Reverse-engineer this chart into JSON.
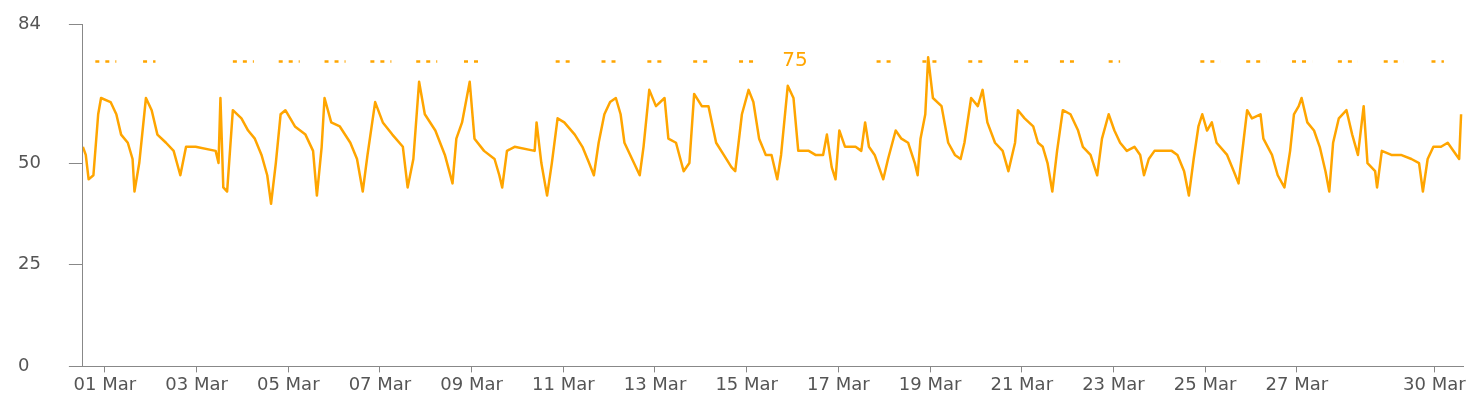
{
  "chart_data": {
    "type": "line",
    "marker": "none",
    "line_style": "solid",
    "grid": false,
    "legend": false,
    "xlim": [
      "--02-28T12:30",
      "--03-30T15:00"
    ],
    "ylim": [
      0,
      84
    ],
    "yticks": [
      0,
      25,
      50,
      84
    ],
    "xticks": [
      {
        "value": "--03-01",
        "label": "01 Mar"
      },
      {
        "value": "--03-03",
        "label": "03 Mar"
      },
      {
        "value": "--03-05",
        "label": "05 Mar"
      },
      {
        "value": "--03-07",
        "label": "07 Mar"
      },
      {
        "value": "--03-09",
        "label": "09 Mar"
      },
      {
        "value": "--03-11",
        "label": "11 Mar"
      },
      {
        "value": "--03-13",
        "label": "13 Mar"
      },
      {
        "value": "--03-15",
        "label": "15 Mar"
      },
      {
        "value": "--03-17",
        "label": "17 Mar"
      },
      {
        "value": "--03-19",
        "label": "19 Mar"
      },
      {
        "value": "--03-21",
        "label": "21 Mar"
      },
      {
        "value": "--03-23",
        "label": "23 Mar"
      },
      {
        "value": "--03-25",
        "label": "25 Mar"
      },
      {
        "value": "--03-27",
        "label": "27 Mar"
      },
      {
        "value": "--03-30",
        "label": "30 Mar"
      }
    ],
    "annotations": [
      "75"
    ],
    "series": [
      {
        "color": "#ffa500",
        "x": [
          "--02-28T12:30",
          "--02-28T14:00",
          "--02-28T15:30",
          "--02-28T18:00",
          "--02-28T20:30",
          "--02-28T22:00",
          "--03-01T03:00",
          "--03-01T06:00",
          "--03-01T08:30",
          "--03-01T12:00",
          "--03-01T14:30",
          "--03-01T15:30",
          "--03-01T18:00",
          "--03-01T21:30",
          "--03-02T00:30",
          "--03-02T03:30",
          "--03-02T08:00",
          "--03-02T12:00",
          "--03-02T15:30",
          "--03-02T18:30",
          "--03-02T23:30",
          "--03-03T10:00",
          "--03-03T11:30",
          "--03-03T12:30",
          "--03-03T14:00",
          "--03-03T16:00",
          "--03-03T19:00",
          "--03-03T23:30",
          "--03-04T03:00",
          "--03-04T06:30",
          "--03-04T10:00",
          "--03-04T13:00",
          "--03-04T15:00",
          "--03-04T17:30",
          "--03-04T20:00",
          "--03-04T22:30",
          "--03-05T03:30",
          "--03-05T09:00",
          "--03-05T13:00",
          "--03-05T15:00",
          "--03-05T17:30",
          "--03-05T19:00",
          "--03-05T22:30",
          "--03-06T03:00",
          "--03-06T08:30",
          "--03-06T12:00",
          "--03-06T15:00",
          "--03-06T17:30",
          "--03-06T21:30",
          "--03-07T01:30",
          "--03-07T06:30",
          "--03-07T12:00",
          "--03-07T14:30",
          "--03-07T17:30",
          "--03-07T20:30",
          "--03-07T23:30",
          "--03-08T05:00",
          "--03-08T10:00",
          "--03-08T14:00",
          "--03-08T16:00",
          "--03-08T19:00",
          "--03-08T23:00",
          "--03-09T01:30",
          "--03-09T06:30",
          "--03-09T12:00",
          "--03-09T14:30",
          "--03-09T16:00",
          "--03-09T18:30",
          "--03-09T22:30",
          "--03-10T09:00",
          "--03-10T10:00",
          "--03-10T12:30",
          "--03-10T15:30",
          "--03-10T18:00",
          "--03-10T21:00",
          "--03-11T00:30",
          "--03-11T06:00",
          "--03-11T10:00",
          "--03-11T13:30",
          "--03-11T16:00",
          "--03-11T18:30",
          "--03-11T21:30",
          "--03-12T00:30",
          "--03-12T03:30",
          "--03-12T06:00",
          "--03-12T08:00",
          "--03-12T12:00",
          "--03-12T16:00",
          "--03-12T18:00",
          "--03-12T21:00",
          "--03-13T00:30",
          "--03-13T05:00",
          "--03-13T07:00",
          "--03-13T11:00",
          "--03-13T15:00",
          "--03-13T18:00",
          "--03-13T20:30",
          "--03-14T00:30",
          "--03-14T04:00",
          "--03-14T08:00",
          "--03-14T12:00",
          "--03-14T16:00",
          "--03-14T18:00",
          "--03-14T21:30",
          "--03-15T01:00",
          "--03-15T03:30",
          "--03-15T06:30",
          "--03-15T10:00",
          "--03-15T13:00",
          "--03-15T16:00",
          "--03-15T18:00",
          "--03-15T21:30",
          "--03-16T00:30",
          "--03-16T03:00",
          "--03-16T08:30",
          "--03-16T12:00",
          "--03-16T16:00",
          "--03-16T18:00",
          "--03-16T20:30",
          "--03-16T22:30",
          "--03-17T00:30",
          "--03-17T03:30",
          "--03-17T09:00",
          "--03-17T12:00",
          "--03-17T14:00",
          "--03-17T16:00",
          "--03-17T19:00",
          "--03-17T23:30",
          "--03-18T02:00",
          "--03-18T06:00",
          "--03-18T09:00",
          "--03-18T12:30",
          "--03-18T16:00",
          "--03-18T17:30",
          "--03-18T19:00",
          "--03-18T21:30",
          "--03-18T23:00",
          "--03-19T01:30",
          "--03-19T06:00",
          "--03-19T09:30",
          "--03-19T13:00",
          "--03-19T16:00",
          "--03-19T18:00",
          "--03-19T21:30",
          "--03-20T01:00",
          "--03-20T03:30",
          "--03-20T06:00",
          "--03-20T10:00",
          "--03-20T14:00",
          "--03-20T17:00",
          "--03-20T20:30",
          "--03-20T22:00",
          "--03-21T01:30",
          "--03-21T06:00",
          "--03-21T08:30",
          "--03-21T11:00",
          "--03-21T13:30",
          "--03-21T16:00",
          "--03-21T18:30",
          "--03-21T21:30",
          "--03-22T01:30",
          "--03-22T05:30",
          "--03-22T08:00",
          "--03-22T12:00",
          "--03-22T15:30",
          "--03-22T18:00",
          "--03-22T21:30",
          "--03-23T00:30",
          "--03-23T03:30",
          "--03-23T07:00",
          "--03-23T11:00",
          "--03-23T14:00",
          "--03-23T16:00",
          "--03-23T18:30",
          "--03-23T21:30",
          "--03-24T06:30",
          "--03-24T09:30",
          "--03-24T13:00",
          "--03-24T15:30",
          "--03-24T18:00",
          "--03-24T20:30",
          "--03-24T22:30",
          "--03-25T01:00",
          "--03-25T03:30",
          "--03-25T06:00",
          "--03-25T11:30",
          "--03-25T15:00",
          "--03-25T17:30",
          "--03-25T20:00",
          "--03-25T22:00",
          "--03-26T00:30",
          "--03-26T05:00",
          "--03-26T06:30",
          "--03-26T11:00",
          "--03-26T14:00",
          "--03-26T17:30",
          "--03-26T20:30",
          "--03-26T22:30",
          "--03-27T01:00",
          "--03-27T02:30",
          "--03-27T05:30",
          "--03-27T09:00",
          "--03-27T12:00",
          "--03-27T15:00",
          "--03-27T17:00",
          "--03-27T19:00",
          "--03-27T22:00",
          "--03-28T02:00",
          "--03-28T05:00",
          "--03-28T08:00",
          "--03-28T11:00",
          "--03-28T13:00",
          "--03-28T17:00",
          "--03-28T18:00",
          "--03-28T20:30",
          "--03-29T01:30",
          "--03-29T06:30",
          "--03-29T12:00",
          "--03-29T16:00",
          "--03-29T18:00",
          "--03-29T20:30",
          "--03-29T23:30",
          "--03-30T03:30",
          "--03-30T07:00",
          "--03-30T11:30",
          "--03-30T13:00",
          "--03-30T14:00"
        ],
        "values": [
          54,
          52,
          46,
          47,
          62,
          66,
          65,
          62,
          57,
          55,
          51,
          43,
          50,
          66,
          63,
          57,
          55,
          53,
          47,
          54,
          54,
          53,
          50,
          66,
          44,
          43,
          63,
          61,
          58,
          56,
          52,
          47,
          40,
          50,
          62,
          63,
          59,
          57,
          53,
          42,
          54,
          66,
          60,
          59,
          55,
          51,
          43,
          52,
          65,
          60,
          57,
          54,
          44,
          51,
          70,
          62,
          58,
          52,
          45,
          56,
          60,
          70,
          56,
          53,
          51,
          47,
          44,
          53,
          54,
          53,
          60,
          50,
          42,
          50,
          61,
          60,
          57,
          54,
          50,
          47,
          55,
          62,
          65,
          66,
          62,
          55,
          51,
          47,
          54,
          68,
          64,
          66,
          56,
          55,
          48,
          50,
          67,
          64,
          64,
          55,
          52,
          49,
          48,
          62,
          68,
          65,
          56,
          52,
          52,
          46,
          52,
          69,
          66,
          53,
          53,
          52,
          52,
          57,
          49,
          46,
          58,
          54,
          54,
          53,
          60,
          54,
          52,
          46,
          51,
          58,
          56,
          55,
          50,
          47,
          56,
          62,
          76,
          66,
          64,
          55,
          52,
          51,
          55,
          66,
          64,
          68,
          60,
          55,
          53,
          48,
          55,
          63,
          61,
          59,
          55,
          54,
          50,
          43,
          53,
          63,
          62,
          58,
          54,
          52,
          47,
          56,
          62,
          58,
          55,
          53,
          54,
          52,
          47,
          51,
          53,
          53,
          52,
          48,
          42,
          51,
          59,
          62,
          58,
          60,
          55,
          52,
          48,
          45,
          55,
          63,
          61,
          62,
          56,
          52,
          47,
          44,
          53,
          62,
          64,
          66,
          60,
          58,
          54,
          48,
          43,
          55,
          61,
          63,
          57,
          52,
          64,
          50,
          48,
          44,
          53,
          52,
          52,
          51,
          50,
          43,
          51,
          54,
          54,
          55,
          52,
          51,
          62
        ]
      },
      {
        "color": "#ffa500",
        "line_style": "dotted",
        "x": [
          "--02-28T19:00",
          "--03-01T06:00",
          "--03-01T12:00",
          "--03-01T20:00",
          "--03-02T02:30",
          "--03-03T00:00",
          "--03-03T19:00",
          "--03-04T06:00",
          "--03-04T12:00",
          "--03-04T19:00",
          "--03-05T06:00",
          "--03-05T12:00",
          "--03-05T19:00",
          "--03-06T06:00",
          "--03-06T12:00",
          "--03-06T19:00",
          "--03-07T06:00",
          "--03-07T12:00",
          "--03-07T19:00",
          "--03-08T06:00",
          "--03-08T12:00",
          "--03-08T20:00",
          "--03-09T03:30",
          "--03-10T00:00",
          "--03-10T20:00",
          "--03-11T06:00",
          "--03-11T12:00",
          "--03-11T20:00",
          "--03-12T06:00",
          "--03-12T12:00",
          "--03-12T20:00",
          "--03-13T06:00",
          "--03-13T12:00",
          "--03-13T20:00",
          "--03-14T06:00",
          "--03-14T12:00",
          "--03-14T20:00",
          "--03-15T06:00",
          "--03-16T12:00",
          "--03-17T20:00",
          "--03-18T06:00",
          "--03-18T12:00",
          "--03-18T20:00",
          "--03-19T06:00",
          "--03-19T12:00",
          "--03-19T20:00",
          "--03-20T06:00",
          "--03-20T12:00",
          "--03-20T20:00",
          "--03-21T06:00",
          "--03-21T12:00",
          "--03-21T20:00",
          "--03-22T06:00",
          "--03-22T12:00",
          "--03-22T21:30",
          "--03-23T03:30",
          "--03-24T00:00",
          "--03-24T21:30",
          "--03-25T08:00",
          "--03-25T14:00",
          "--03-25T21:30",
          "--03-26T08:00",
          "--03-26T14:00",
          "--03-26T21:30",
          "--03-27T08:00",
          "--03-27T14:00",
          "--03-27T21:30",
          "--03-28T08:00",
          "--03-28T14:00",
          "--03-28T21:30",
          "--03-29T08:00",
          "--03-29T14:00",
          "--03-29T22:30",
          "--03-30T05:00"
        ],
        "values": [
          75,
          75,
          null,
          75,
          75,
          null,
          75,
          75,
          null,
          75,
          75,
          null,
          75,
          75,
          null,
          75,
          75,
          null,
          75,
          75,
          null,
          75,
          75,
          null,
          75,
          75,
          null,
          75,
          75,
          null,
          75,
          75,
          null,
          75,
          75,
          null,
          75,
          75,
          null,
          75,
          75,
          null,
          75,
          75,
          null,
          75,
          75,
          null,
          75,
          75,
          null,
          75,
          75,
          null,
          75,
          75,
          null,
          75,
          75,
          null,
          75,
          75,
          null,
          75,
          75,
          null,
          75,
          75,
          null,
          75,
          75,
          null,
          75,
          75
        ]
      }
    ]
  }
}
